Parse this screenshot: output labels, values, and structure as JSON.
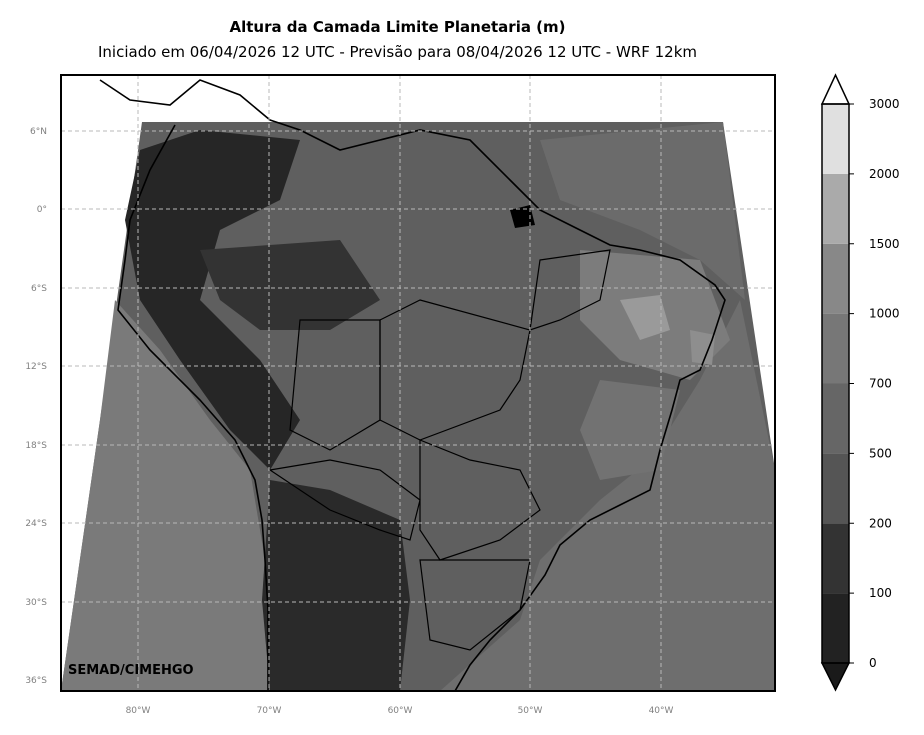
{
  "title": "Altura da Camada Limite Planetaria (m)",
  "subtitle": "Iniciado em 06/04/2026 12 UTC - Previsão para 08/04/2026 12 UTC - WRF 12km",
  "credit": "SEMAD/CIMEHGO",
  "lat_labels": [
    "6°N",
    "0°",
    "6°S",
    "12°S",
    "18°S",
    "24°S",
    "30°S",
    "36°S"
  ],
  "lon_labels": [
    "80°W",
    "70°W",
    "60°W",
    "50°W",
    "40°W"
  ],
  "colorbar": {
    "levels": [
      "0",
      "100",
      "200",
      "500",
      "700",
      "1000",
      "1500",
      "2000",
      "3000"
    ],
    "colors": [
      "#1a1a1a",
      "#222222",
      "#333333",
      "#555555",
      "#666666",
      "#777777",
      "#888888",
      "#aaaaaa",
      "#e0e0e0",
      "#ffffff"
    ]
  }
}
